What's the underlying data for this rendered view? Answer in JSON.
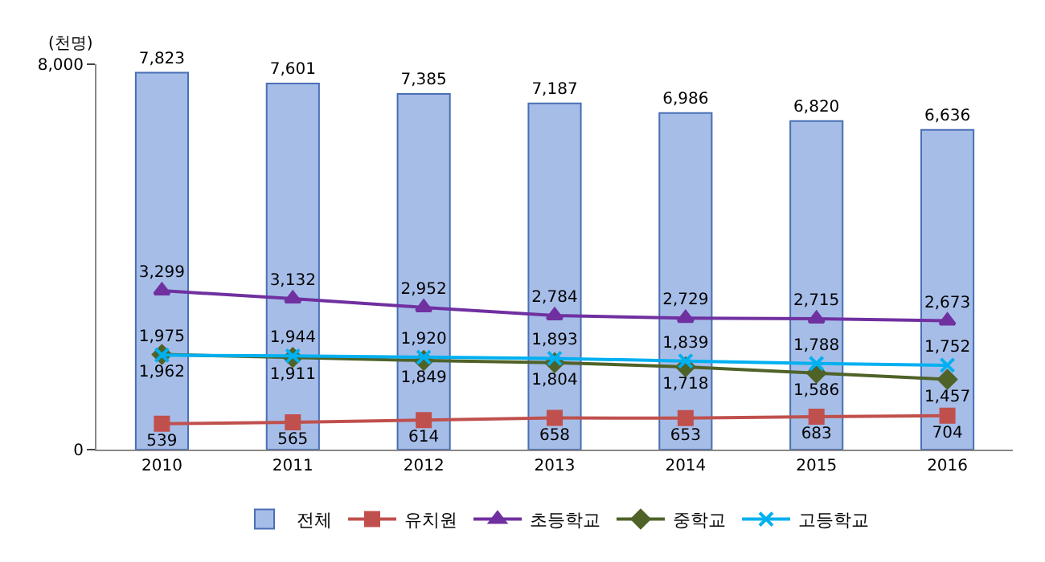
{
  "chart_data": {
    "type": "bar",
    "ylabel": "(천명)",
    "categories": [
      "2010",
      "2011",
      "2012",
      "2013",
      "2014",
      "2015",
      "2016"
    ],
    "ylim": [
      0,
      8000
    ],
    "yticks": [
      0,
      {
        "value": 8000,
        "label": "8,000"
      }
    ],
    "legend": "bottom",
    "series": [
      {
        "name": "전체",
        "color": "#a6bde8",
        "values": [
          7823,
          7601,
          7385,
          7187,
          6986,
          6820,
          6636
        ],
        "value_labels": [
          "7,823",
          "7,601",
          "7,385",
          "7,187",
          "6,986",
          "6,820",
          "6,636"
        ]
      },
      {
        "name": "유치원",
        "type": "line",
        "marker": "square",
        "color": "#c0504d",
        "values": [
          539,
          565,
          614,
          658,
          653,
          683,
          704
        ],
        "value_labels": [
          "539",
          "565",
          "614",
          "658",
          "653",
          "683",
          "704"
        ]
      },
      {
        "name": "초등학교",
        "type": "line",
        "marker": "triangle",
        "color": "#7030a0",
        "values": [
          3299,
          3132,
          2952,
          2784,
          2729,
          2715,
          2673
        ],
        "value_labels": [
          "3,299",
          "3,132",
          "2,952",
          "2,784",
          "2,729",
          "2,715",
          "2,673"
        ]
      },
      {
        "name": "중학교",
        "type": "line",
        "marker": "diamond",
        "color": "#4f6228",
        "values": [
          1975,
          1911,
          1849,
          1804,
          1718,
          1586,
          1457
        ],
        "value_labels": [
          "1,975",
          "1,911",
          "1,849",
          "1,804",
          "1,718",
          "1,586",
          "1,457"
        ]
      },
      {
        "name": "고등학교",
        "type": "line",
        "marker": "cross",
        "color": "#00b0f0",
        "values": [
          1962,
          1944,
          1920,
          1893,
          1839,
          1788,
          1752
        ],
        "value_labels": [
          "1,962",
          "1,944",
          "1,920",
          "1,893",
          "1,839",
          "1,788",
          "1,752"
        ]
      }
    ]
  }
}
